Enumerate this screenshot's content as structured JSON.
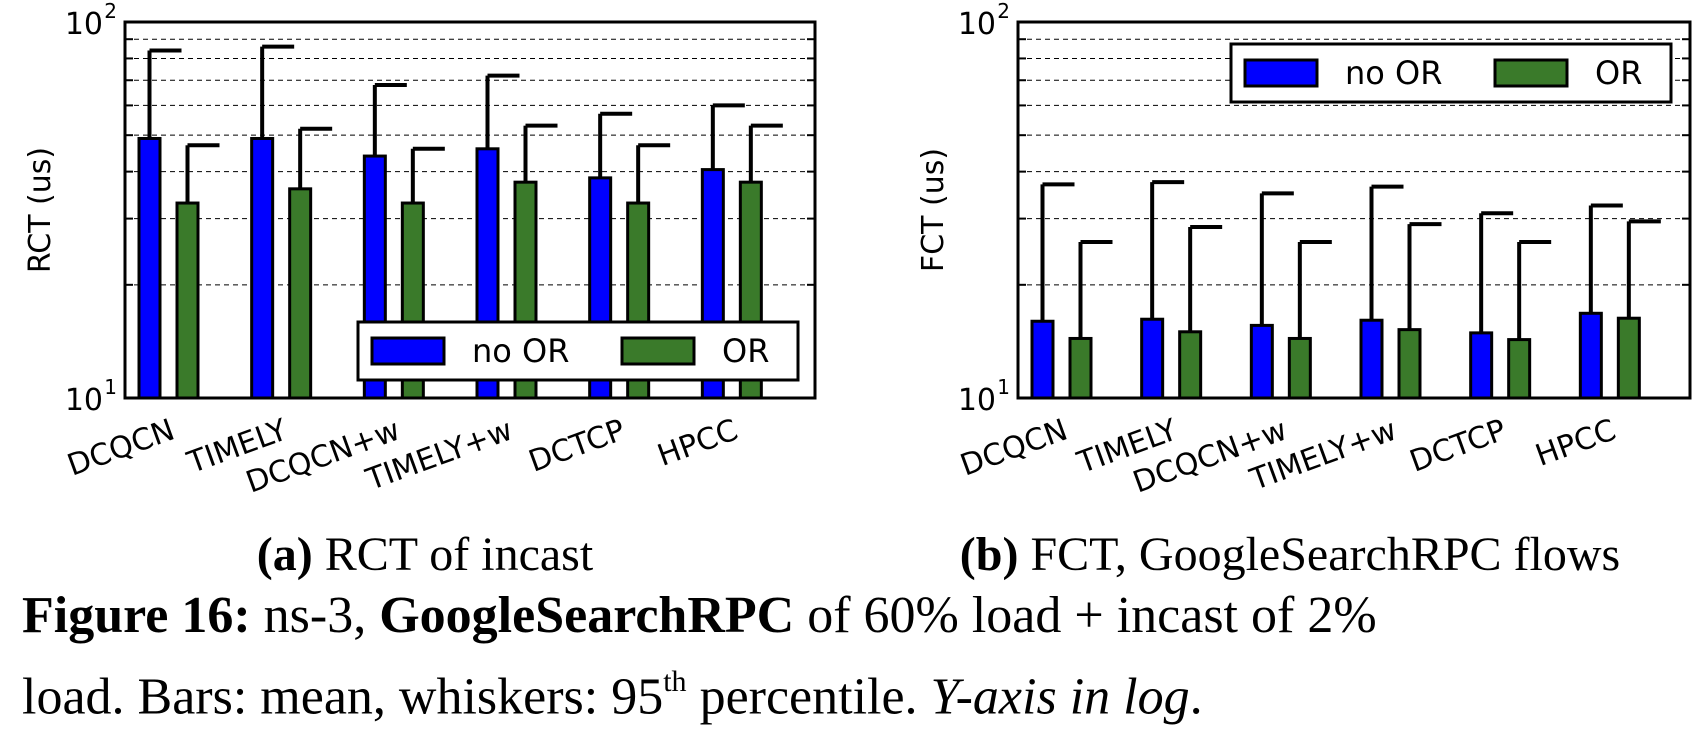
{
  "chart_data": [
    {
      "type": "bar",
      "panel_label": "(a)",
      "subtitle": "RCT of incast",
      "ylabel": "RCT (us)",
      "yscale": "log",
      "ylim": [
        10,
        100
      ],
      "y_ticks": [
        {
          "base": "10",
          "exp": "1"
        },
        {
          "base": "10",
          "exp": "2"
        }
      ],
      "grid": "y-dashed",
      "legend_position": "lower-right",
      "categories": [
        "DCQCN",
        "TIMELY",
        "DCQCN+w",
        "TIMELY+w",
        "DCTCP",
        "HPCC"
      ],
      "series": [
        {
          "name": "no OR",
          "color": "#0000ff",
          "values": [
            49,
            49,
            44,
            46,
            38.5,
            40.5
          ],
          "p95": [
            84,
            86,
            68,
            72,
            57,
            60
          ]
        },
        {
          "name": "OR",
          "color": "#3a7a2a",
          "values": [
            33,
            36,
            33,
            37.5,
            33,
            37.5
          ],
          "p95": [
            47,
            52,
            46,
            53,
            47,
            53
          ]
        }
      ]
    },
    {
      "type": "bar",
      "panel_label": "(b)",
      "subtitle": "FCT, GoogleSearchRPC flows",
      "ylabel": "FCT (us)",
      "yscale": "log",
      "ylim": [
        10,
        100
      ],
      "y_ticks": [
        {
          "base": "10",
          "exp": "1"
        },
        {
          "base": "10",
          "exp": "2"
        }
      ],
      "grid": "y-dashed",
      "legend_position": "upper-right",
      "categories": [
        "DCQCN",
        "TIMELY",
        "DCQCN+w",
        "TIMELY+w",
        "DCTCP",
        "HPCC"
      ],
      "series": [
        {
          "name": "no OR",
          "color": "#0000ff",
          "values": [
            16,
            16.2,
            15.6,
            16.1,
            14.9,
            16.8
          ],
          "p95": [
            37,
            37.5,
            35,
            36.5,
            31,
            32.5
          ]
        },
        {
          "name": "OR",
          "color": "#3a7a2a",
          "values": [
            14.4,
            15,
            14.4,
            15.2,
            14.3,
            16.3
          ],
          "p95": [
            26,
            28.5,
            26,
            29,
            26,
            29.5
          ]
        }
      ]
    }
  ],
  "caption": {
    "fig_label": "Figure 16:",
    "text1": " ns-3, ",
    "bold2": "GoogleSearchRPC",
    "text2": " of 60% load + incast of 2%",
    "line2_a": "load. Bars: mean, whiskers: 95",
    "line2_sup": "th",
    "line2_b": " percentile. ",
    "line2_italic": "Y-axis in log",
    "line2_end": "."
  }
}
